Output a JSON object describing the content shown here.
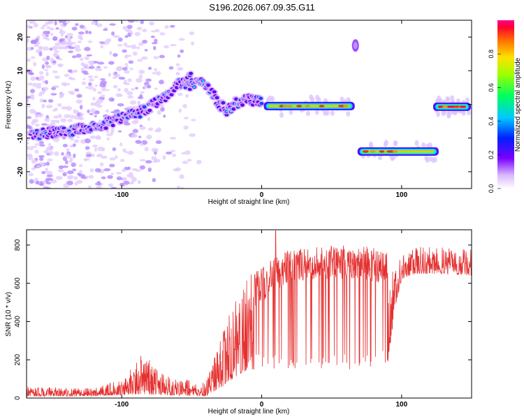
{
  "title": "S196.2026.067.09.35.G11",
  "chart_data": [
    {
      "type": "heatmap",
      "name": "spectrogram",
      "xlabel": "Height of straight line (km)",
      "ylabel": "Frequency (Hz)",
      "xlim": [
        -168,
        150
      ],
      "ylim": [
        -25,
        25
      ],
      "x_ticks": [
        -100,
        0,
        100
      ],
      "x_tick_labels": [
        "-100",
        "0",
        "100"
      ],
      "y_ticks": [
        -20,
        -10,
        0,
        10,
        20
      ],
      "y_tick_labels": [
        "-20",
        "-10",
        "0",
        "10",
        "20"
      ],
      "colorbar": {
        "label": "Normalized spectral amplitude",
        "range": [
          0,
          1
        ],
        "ticks": [
          0.0,
          0.2,
          0.4,
          0.6,
          0.8
        ],
        "tick_labels": [
          "0.0",
          "0.2",
          "0.4",
          "0.6",
          "0.8"
        ]
      },
      "features": [
        {
          "label": "rising trace",
          "x": [
            -165,
            -140,
            -120,
            -100,
            -85,
            -70,
            -60,
            -50
          ],
          "freq": [
            -9,
            -8,
            -7,
            -4,
            -2,
            2,
            6,
            8
          ],
          "amplitude": 0.2
        },
        {
          "label": "arc",
          "x": [
            -55,
            -45,
            -40,
            -35,
            -30,
            -25
          ],
          "freq": [
            5,
            7,
            6,
            3,
            0,
            -2
          ],
          "amplitude": 0.35
        },
        {
          "label": "wiggle",
          "x": [
            -25,
            -20,
            -15,
            -10,
            -5,
            0
          ],
          "freq": [
            -2,
            0,
            1,
            2,
            1,
            1
          ],
          "amplitude": 0.3
        },
        {
          "label": "band at 0 Hz",
          "x_range": [
            3,
            65
          ],
          "freq": -0.5,
          "amplitude": 0.9
        },
        {
          "label": "short burst",
          "x": 67,
          "freq": 17.5,
          "amplitude": 0.1
        },
        {
          "label": "band at -14 Hz",
          "x_range": [
            70,
            125
          ],
          "freq": -14,
          "amplitude": 0.9
        },
        {
          "label": "band at 0 Hz (late)",
          "x_range": [
            124,
            148
          ],
          "freq": -0.7,
          "amplitude": 1.0
        }
      ]
    },
    {
      "type": "line",
      "name": "snr",
      "xlabel": "Height of straight line (km)",
      "ylabel": "SNR (10 * v/v)",
      "xlim": [
        -168,
        150
      ],
      "ylim": [
        0,
        880
      ],
      "x_ticks": [
        -100,
        0,
        100
      ],
      "x_tick_labels": [
        "-100",
        "0",
        "100"
      ],
      "y_ticks": [
        0,
        200,
        400,
        600,
        800
      ],
      "y_tick_labels": [
        "0",
        "200",
        "400",
        "600",
        "800"
      ],
      "color": "#e53030",
      "envelope": [
        {
          "x": -168,
          "low": 10,
          "high": 60
        },
        {
          "x": -120,
          "low": 10,
          "high": 50
        },
        {
          "x": -100,
          "low": 15,
          "high": 100
        },
        {
          "x": -85,
          "low": 20,
          "high": 240
        },
        {
          "x": -70,
          "low": 15,
          "high": 120
        },
        {
          "x": -40,
          "low": 10,
          "high": 80
        },
        {
          "x": -30,
          "low": 50,
          "high": 300
        },
        {
          "x": -20,
          "low": 100,
          "high": 500
        },
        {
          "x": -10,
          "low": 150,
          "high": 640
        },
        {
          "x": 0,
          "low": 150,
          "high": 680
        },
        {
          "x": 10,
          "low": 150,
          "high": 740
        },
        {
          "x": 20,
          "low": 150,
          "high": 780
        },
        {
          "x": 40,
          "low": 150,
          "high": 800
        },
        {
          "x": 60,
          "low": 150,
          "high": 800
        },
        {
          "x": 80,
          "low": 150,
          "high": 790
        },
        {
          "x": 90,
          "low": 180,
          "high": 760
        },
        {
          "x": 95,
          "low": 450,
          "high": 720
        },
        {
          "x": 100,
          "low": 620,
          "high": 760
        },
        {
          "x": 110,
          "low": 650,
          "high": 790
        },
        {
          "x": 130,
          "low": 650,
          "high": 790
        },
        {
          "x": 150,
          "low": 640,
          "high": 780
        }
      ],
      "peak": {
        "x": 10,
        "y": 875
      }
    }
  ]
}
